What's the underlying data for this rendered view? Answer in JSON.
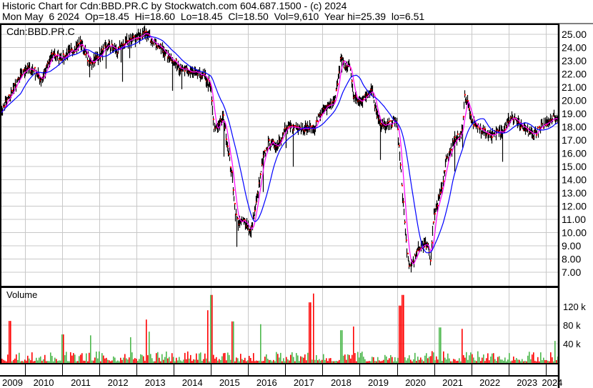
{
  "header": {
    "line1": "Historic Chart for Cdn:BBD.PR.C by Stockwatch.com 604.687.1500 - (c) 2024",
    "line2": "Mon May  6 2024  Op=18.45  Hi=18.60  Lo=18.45  Cl=18.50  Vol=9,610  Year hi=25.39  lo=6.51"
  },
  "symbol": "Cdn:BBD.PR.C",
  "volume_label": "Volume",
  "colors": {
    "bar": "#000000",
    "close": "#ff0000",
    "ma_short": "#ff00ff",
    "ma_long": "#0000ff",
    "vol_down": "#ff0000",
    "vol_up": "#4cb84c",
    "grid": "#c8c8c8"
  },
  "chart_data": [
    {
      "type": "line",
      "series_style": "OHLC bars with two moving averages",
      "ylim": [
        6.5,
        25.7
      ],
      "y_ticks": [
        "7.00",
        "8.00",
        "9.00",
        "10.00",
        "11.00",
        "12.00",
        "13.00",
        "14.00",
        "15.00",
        "16.00",
        "17.00",
        "18.00",
        "19.00",
        "20.00",
        "21.00",
        "22.00",
        "23.00",
        "24.00",
        "25.00"
      ],
      "x_ticks": [
        "2009",
        "2010",
        "2011",
        "2012",
        "2013",
        "2014",
        "2015",
        "2016",
        "2017",
        "2018",
        "2019",
        "2020",
        "2021",
        "2022",
        "2023",
        "2024"
      ],
      "xlim": [
        "2009-05",
        "2024-05"
      ],
      "grid": true,
      "close": [
        [
          "2009-05",
          19.05
        ],
        [
          "2009-07",
          19.9
        ],
        [
          "2009-10",
          21.2
        ],
        [
          "2010-01",
          22.4
        ],
        [
          "2010-04",
          22.3
        ],
        [
          "2010-06",
          21.5
        ],
        [
          "2010-10",
          23.5
        ],
        [
          "2011-01",
          23.2
        ],
        [
          "2011-04",
          23.7
        ],
        [
          "2011-07",
          24.35
        ],
        [
          "2011-10",
          22.8
        ],
        [
          "2012-01",
          23.4
        ],
        [
          "2012-04",
          24.2
        ],
        [
          "2012-07",
          23.7
        ],
        [
          "2012-10",
          24.5
        ],
        [
          "2013-01",
          24.8
        ],
        [
          "2013-04",
          25.0
        ],
        [
          "2013-07",
          24.4
        ],
        [
          "2013-11",
          23.4
        ],
        [
          "2014-01",
          23.0
        ],
        [
          "2014-04",
          22.3
        ],
        [
          "2014-07",
          22.1
        ],
        [
          "2014-11",
          21.8
        ],
        [
          "2015-01",
          21.0
        ],
        [
          "2015-02",
          17.6
        ],
        [
          "2015-05",
          18.7
        ],
        [
          "2015-06",
          17.2
        ],
        [
          "2015-08",
          14.0
        ],
        [
          "2015-09",
          11.3
        ],
        [
          "2015-10",
          10.7
        ],
        [
          "2015-12",
          10.9
        ],
        [
          "2016-02",
          10.0
        ],
        [
          "2016-04",
          12.7
        ],
        [
          "2016-06",
          15.8
        ],
        [
          "2016-08",
          16.9
        ],
        [
          "2016-10",
          16.5
        ],
        [
          "2017-01",
          17.8
        ],
        [
          "2017-04",
          18.0
        ],
        [
          "2017-06",
          18.0
        ],
        [
          "2017-10",
          17.8
        ],
        [
          "2017-12",
          18.8
        ],
        [
          "2018-02",
          19.4
        ],
        [
          "2018-05",
          19.8
        ],
        [
          "2018-07",
          23.4
        ],
        [
          "2018-08",
          22.6
        ],
        [
          "2018-10",
          22.6
        ],
        [
          "2018-11",
          20.3
        ],
        [
          "2019-01",
          19.9
        ],
        [
          "2019-03",
          20.3
        ],
        [
          "2019-05",
          21.0
        ],
        [
          "2019-06",
          19.6
        ],
        [
          "2019-08",
          18.0
        ],
        [
          "2019-11",
          18.2
        ],
        [
          "2020-01",
          18.5
        ],
        [
          "2020-02",
          15.8
        ],
        [
          "2020-03",
          12.7
        ],
        [
          "2020-04",
          9.5
        ],
        [
          "2020-05",
          7.3
        ],
        [
          "2020-06",
          7.7
        ],
        [
          "2020-09",
          9.1
        ],
        [
          "2020-11",
          9.1
        ],
        [
          "2020-12",
          8.0
        ],
        [
          "2021-01",
          11.3
        ],
        [
          "2021-02",
          11.8
        ],
        [
          "2021-04",
          14.0
        ],
        [
          "2021-05",
          15.6
        ],
        [
          "2021-06",
          16.0
        ],
        [
          "2021-08",
          17.1
        ],
        [
          "2021-10",
          17.4
        ],
        [
          "2021-11",
          20.3
        ],
        [
          "2021-12",
          19.8
        ],
        [
          "2022-01",
          18.5
        ],
        [
          "2022-04",
          17.8
        ],
        [
          "2022-07",
          17.4
        ],
        [
          "2022-11",
          17.6
        ],
        [
          "2023-01",
          18.5
        ],
        [
          "2023-03",
          18.7
        ],
        [
          "2023-05",
          18.0
        ],
        [
          "2023-09",
          17.4
        ],
        [
          "2023-11",
          17.8
        ],
        [
          "2024-02",
          18.5
        ],
        [
          "2024-04",
          18.7
        ],
        [
          "2024-05",
          18.5
        ]
      ]
    },
    {
      "type": "bar",
      "title": "Volume",
      "ylim": [
        0,
        155000
      ],
      "y_ticks": [
        "40 k",
        "80 k",
        "120 k"
      ],
      "grid": true,
      "volume_spikes": [
        [
          "2009-08",
          89000
        ],
        [
          "2011-01",
          60000
        ],
        [
          "2011-10",
          58000
        ],
        [
          "2012-11",
          54000
        ],
        [
          "2013-04",
          92000
        ],
        [
          "2013-05",
          66000
        ],
        [
          "2014-12",
          112000
        ],
        [
          "2015-01",
          145000
        ],
        [
          "2015-08",
          88000
        ],
        [
          "2016-05",
          82000
        ],
        [
          "2017-09",
          129000
        ],
        [
          "2017-10",
          148000
        ],
        [
          "2018-07",
          69000
        ],
        [
          "2018-11",
          77000
        ],
        [
          "2020-02",
          122000
        ],
        [
          "2020-03",
          145000
        ],
        [
          "2021-03",
          75000
        ],
        [
          "2021-10",
          72000
        ],
        [
          "2024-04",
          46000
        ]
      ]
    }
  ]
}
